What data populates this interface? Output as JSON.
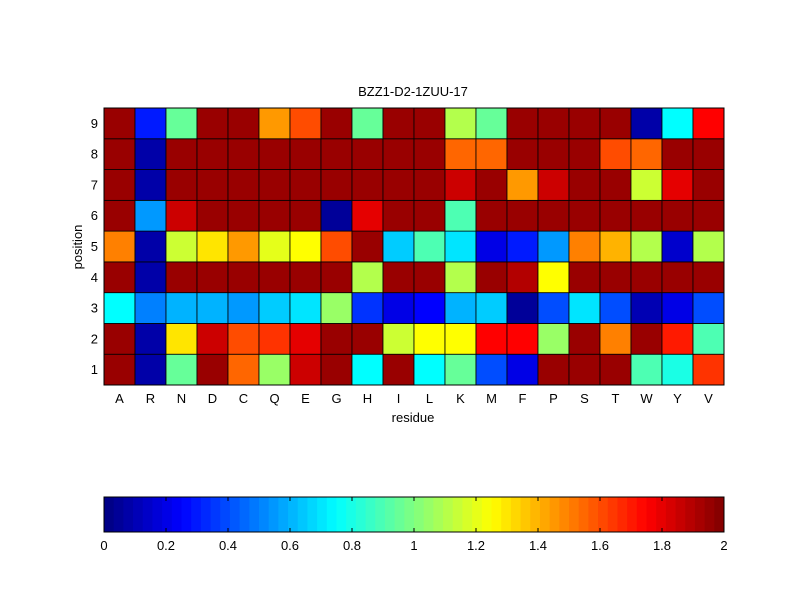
{
  "chart_data": {
    "type": "heatmap",
    "title": "BZZ1-D2-1ZUU-17",
    "xlabel": "residue",
    "ylabel": "position",
    "x_categories": [
      "A",
      "R",
      "N",
      "D",
      "C",
      "Q",
      "E",
      "G",
      "H",
      "I",
      "L",
      "K",
      "M",
      "F",
      "P",
      "S",
      "T",
      "W",
      "Y",
      "V"
    ],
    "y_categories": [
      "1",
      "2",
      "3",
      "4",
      "5",
      "6",
      "7",
      "8",
      "9"
    ],
    "values": [
      [
        1.95,
        0.08,
        0.95,
        1.95,
        1.55,
        1.05,
        1.85,
        1.95,
        0.75,
        1.95,
        0.75,
        0.95,
        0.4,
        0.2,
        1.95,
        1.95,
        1.95,
        0.9,
        0.8,
        1.65
      ],
      [
        1.95,
        0.08,
        1.3,
        1.85,
        1.6,
        1.65,
        1.8,
        1.95,
        1.95,
        1.15,
        1.25,
        1.25,
        1.75,
        1.75,
        1.05,
        1.95,
        1.5,
        1.95,
        1.7,
        0.9
      ],
      [
        0.75,
        0.5,
        0.6,
        0.6,
        0.55,
        0.65,
        0.7,
        1.05,
        0.35,
        0.2,
        0.25,
        0.6,
        0.65,
        0.05,
        0.4,
        0.7,
        0.4,
        0.1,
        0.2,
        0.4
      ],
      [
        1.95,
        0.08,
        1.95,
        1.95,
        1.95,
        1.95,
        1.95,
        1.95,
        1.1,
        1.95,
        1.95,
        1.1,
        1.95,
        1.9,
        1.25,
        1.95,
        1.95,
        1.95,
        1.95,
        1.95
      ],
      [
        1.5,
        0.08,
        1.15,
        1.3,
        1.45,
        1.2,
        1.25,
        1.6,
        1.95,
        0.65,
        0.9,
        0.7,
        0.2,
        0.3,
        0.55,
        1.5,
        1.4,
        1.1,
        0.15,
        1.1
      ],
      [
        1.95,
        0.55,
        1.85,
        1.95,
        1.95,
        1.95,
        1.95,
        0.05,
        1.8,
        1.95,
        1.95,
        0.9,
        1.95,
        1.95,
        1.95,
        1.95,
        1.95,
        1.95,
        1.95,
        1.95
      ],
      [
        1.95,
        0.08,
        1.95,
        1.95,
        1.95,
        1.95,
        1.95,
        1.95,
        1.95,
        1.95,
        1.95,
        1.85,
        1.95,
        1.45,
        1.85,
        1.95,
        1.95,
        1.15,
        1.8,
        1.95
      ],
      [
        1.95,
        0.08,
        1.95,
        1.95,
        1.95,
        1.95,
        1.95,
        1.95,
        1.95,
        1.95,
        1.95,
        1.55,
        1.55,
        1.95,
        1.95,
        1.95,
        1.6,
        1.55,
        1.95,
        1.95
      ],
      [
        1.95,
        0.3,
        0.95,
        1.95,
        1.95,
        1.45,
        1.6,
        1.95,
        0.95,
        1.95,
        1.95,
        1.1,
        0.95,
        1.95,
        1.95,
        1.95,
        1.95,
        0.08,
        0.75,
        1.75
      ]
    ],
    "colorbar": {
      "range": [
        0,
        2
      ],
      "ticks": [
        "0",
        "0.2",
        "0.4",
        "0.6",
        "0.8",
        "1",
        "1.2",
        "1.4",
        "1.6",
        "1.8",
        "2"
      ],
      "colormap": "jet",
      "steps": 64
    },
    "grid": true,
    "colors": {
      "cell_border": "#000000",
      "axis": "#000000"
    }
  }
}
